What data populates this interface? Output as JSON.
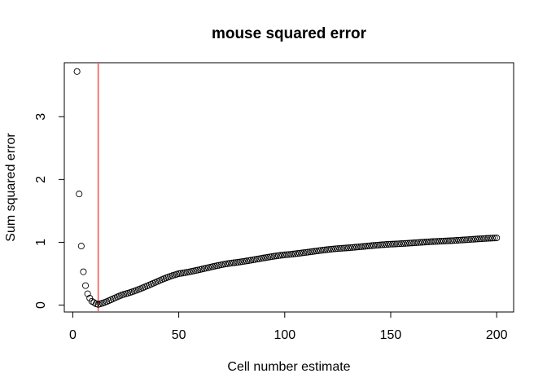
{
  "chart_data": {
    "type": "scatter",
    "title": "mouse squared error",
    "xlabel": "Cell number estimate",
    "ylabel": "Sum squared error",
    "xlim": [
      -4,
      208
    ],
    "ylim": [
      -0.11,
      3.86
    ],
    "x_ticks": [
      0,
      50,
      100,
      150,
      200
    ],
    "y_ticks": [
      0,
      1,
      2,
      3
    ],
    "grid": false,
    "legend": "none",
    "marker": "open-circle",
    "marker_color": "#000000",
    "vline": {
      "x": 12,
      "color": "#f25c54"
    },
    "early_points": [
      {
        "x": 2,
        "y": 3.72
      },
      {
        "x": 3,
        "y": 1.77
      },
      {
        "x": 4,
        "y": 0.94
      },
      {
        "x": 5,
        "y": 0.53
      },
      {
        "x": 6,
        "y": 0.31
      },
      {
        "x": 7,
        "y": 0.18
      },
      {
        "x": 8,
        "y": 0.11
      },
      {
        "x": 9,
        "y": 0.06
      },
      {
        "x": 10,
        "y": 0.04
      },
      {
        "x": 11,
        "y": 0.02
      },
      {
        "x": 12,
        "y": 0.01
      }
    ],
    "tail_curve": {
      "x_start": 13,
      "x_end": 200,
      "y_start": 0.02,
      "y_end": 1.07,
      "anchors": [
        {
          "x": 13,
          "y": 0.02
        },
        {
          "x": 25,
          "y": 0.18
        },
        {
          "x": 50,
          "y": 0.5
        },
        {
          "x": 75,
          "y": 0.67
        },
        {
          "x": 100,
          "y": 0.8
        },
        {
          "x": 125,
          "y": 0.9
        },
        {
          "x": 150,
          "y": 0.97
        },
        {
          "x": 175,
          "y": 1.02
        },
        {
          "x": 200,
          "y": 1.07
        }
      ]
    }
  }
}
